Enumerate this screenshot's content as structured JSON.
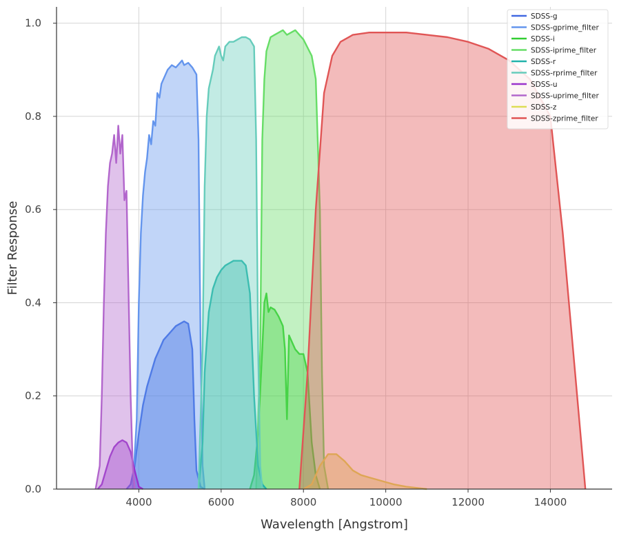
{
  "chart_data": {
    "type": "area",
    "title": "",
    "xlabel": "Wavelength [Angstrom]",
    "ylabel": "Filter Response",
    "xlim": [
      2000,
      15500
    ],
    "ylim": [
      0,
      1.035
    ],
    "xticks": [
      4000,
      6000,
      8000,
      10000,
      12000,
      14000
    ],
    "yticks": [
      0.0,
      0.2,
      0.4,
      0.6,
      0.8,
      1.0
    ],
    "ytick_labels": [
      "0.0",
      "0.2",
      "0.4",
      "0.6",
      "0.8",
      "1.0"
    ],
    "grid": true,
    "legend_position": "top-right",
    "series": [
      {
        "name": "SDSS-g",
        "color": "#4169e1",
        "fill_opacity": 0.45,
        "points": [
          [
            3700,
            0
          ],
          [
            3800,
            0.01
          ],
          [
            3900,
            0.05
          ],
          [
            4000,
            0.12
          ],
          [
            4100,
            0.18
          ],
          [
            4200,
            0.22
          ],
          [
            4300,
            0.25
          ],
          [
            4400,
            0.28
          ],
          [
            4500,
            0.3
          ],
          [
            4600,
            0.32
          ],
          [
            4700,
            0.33
          ],
          [
            4800,
            0.34
          ],
          [
            4900,
            0.35
          ],
          [
            5000,
            0.355
          ],
          [
            5100,
            0.36
          ],
          [
            5200,
            0.355
          ],
          [
            5300,
            0.3
          ],
          [
            5350,
            0.15
          ],
          [
            5400,
            0.04
          ],
          [
            5500,
            0.005
          ],
          [
            5600,
            0
          ]
        ]
      },
      {
        "name": "SDSS-gprime_filter",
        "color": "#6495ed",
        "fill_opacity": 0.4,
        "points": [
          [
            3850,
            0
          ],
          [
            3950,
            0.15
          ],
          [
            4000,
            0.4
          ],
          [
            4050,
            0.55
          ],
          [
            4100,
            0.63
          ],
          [
            4150,
            0.68
          ],
          [
            4200,
            0.71
          ],
          [
            4250,
            0.76
          ],
          [
            4300,
            0.74
          ],
          [
            4350,
            0.79
          ],
          [
            4400,
            0.78
          ],
          [
            4450,
            0.85
          ],
          [
            4500,
            0.84
          ],
          [
            4550,
            0.87
          ],
          [
            4600,
            0.88
          ],
          [
            4700,
            0.9
          ],
          [
            4800,
            0.91
          ],
          [
            4900,
            0.905
          ],
          [
            5000,
            0.915
          ],
          [
            5050,
            0.92
          ],
          [
            5100,
            0.91
          ],
          [
            5200,
            0.915
          ],
          [
            5300,
            0.905
          ],
          [
            5400,
            0.89
          ],
          [
            5450,
            0.75
          ],
          [
            5500,
            0.3
          ],
          [
            5550,
            0.05
          ],
          [
            5600,
            0
          ]
        ]
      },
      {
        "name": "SDSS-i",
        "color": "#32cd32",
        "fill_opacity": 0.4,
        "points": [
          [
            6700,
            0
          ],
          [
            6800,
            0.03
          ],
          [
            6900,
            0.12
          ],
          [
            7000,
            0.3
          ],
          [
            7050,
            0.4
          ],
          [
            7100,
            0.42
          ],
          [
            7150,
            0.38
          ],
          [
            7200,
            0.39
          ],
          [
            7300,
            0.385
          ],
          [
            7400,
            0.37
          ],
          [
            7500,
            0.35
          ],
          [
            7550,
            0.3
          ],
          [
            7600,
            0.15
          ],
          [
            7650,
            0.33
          ],
          [
            7700,
            0.32
          ],
          [
            7800,
            0.3
          ],
          [
            7900,
            0.29
          ],
          [
            8000,
            0.29
          ],
          [
            8100,
            0.25
          ],
          [
            8200,
            0.1
          ],
          [
            8300,
            0.03
          ],
          [
            8400,
            0
          ]
        ]
      },
      {
        "name": "SDSS-iprime_filter",
        "color": "#66dd66",
        "fill_opacity": 0.4,
        "points": [
          [
            6850,
            0
          ],
          [
            6950,
            0.3
          ],
          [
            7000,
            0.75
          ],
          [
            7050,
            0.88
          ],
          [
            7100,
            0.94
          ],
          [
            7200,
            0.97
          ],
          [
            7300,
            0.975
          ],
          [
            7400,
            0.98
          ],
          [
            7500,
            0.985
          ],
          [
            7600,
            0.975
          ],
          [
            7700,
            0.98
          ],
          [
            7800,
            0.985
          ],
          [
            7900,
            0.975
          ],
          [
            8000,
            0.965
          ],
          [
            8200,
            0.93
          ],
          [
            8300,
            0.88
          ],
          [
            8400,
            0.6
          ],
          [
            8450,
            0.25
          ],
          [
            8500,
            0.05
          ],
          [
            8600,
            0
          ]
        ]
      },
      {
        "name": "SDSS-r",
        "color": "#20b2aa",
        "fill_opacity": 0.4,
        "points": [
          [
            5450,
            0
          ],
          [
            5550,
            0.1
          ],
          [
            5600,
            0.25
          ],
          [
            5700,
            0.38
          ],
          [
            5800,
            0.43
          ],
          [
            5900,
            0.455
          ],
          [
            6000,
            0.47
          ],
          [
            6100,
            0.48
          ],
          [
            6200,
            0.485
          ],
          [
            6300,
            0.49
          ],
          [
            6400,
            0.49
          ],
          [
            6500,
            0.49
          ],
          [
            6600,
            0.48
          ],
          [
            6700,
            0.42
          ],
          [
            6800,
            0.2
          ],
          [
            6900,
            0.05
          ],
          [
            7000,
            0.01
          ],
          [
            7100,
            0
          ]
        ]
      },
      {
        "name": "SDSS-rprime_filter",
        "color": "#66ccbb",
        "fill_opacity": 0.4,
        "points": [
          [
            5450,
            0
          ],
          [
            5550,
            0.3
          ],
          [
            5600,
            0.65
          ],
          [
            5650,
            0.8
          ],
          [
            5700,
            0.86
          ],
          [
            5800,
            0.9
          ],
          [
            5850,
            0.93
          ],
          [
            5900,
            0.94
          ],
          [
            5950,
            0.95
          ],
          [
            6000,
            0.93
          ],
          [
            6050,
            0.92
          ],
          [
            6100,
            0.95
          ],
          [
            6200,
            0.96
          ],
          [
            6300,
            0.96
          ],
          [
            6400,
            0.965
          ],
          [
            6500,
            0.97
          ],
          [
            6600,
            0.97
          ],
          [
            6700,
            0.965
          ],
          [
            6800,
            0.95
          ],
          [
            6850,
            0.75
          ],
          [
            6900,
            0.3
          ],
          [
            6950,
            0.05
          ],
          [
            7000,
            0
          ]
        ]
      },
      {
        "name": "SDSS-u",
        "color": "#9932cc",
        "fill_opacity": 0.4,
        "points": [
          [
            3000,
            0
          ],
          [
            3100,
            0.01
          ],
          [
            3200,
            0.04
          ],
          [
            3300,
            0.07
          ],
          [
            3400,
            0.09
          ],
          [
            3500,
            0.1
          ],
          [
            3600,
            0.105
          ],
          [
            3700,
            0.1
          ],
          [
            3800,
            0.08
          ],
          [
            3900,
            0.04
          ],
          [
            4000,
            0.005
          ],
          [
            4100,
            0
          ]
        ]
      },
      {
        "name": "SDSS-uprime_filter",
        "color": "#b266cc",
        "fill_opacity": 0.4,
        "points": [
          [
            2950,
            0
          ],
          [
            3050,
            0.05
          ],
          [
            3100,
            0.2
          ],
          [
            3150,
            0.4
          ],
          [
            3200,
            0.55
          ],
          [
            3250,
            0.65
          ],
          [
            3300,
            0.7
          ],
          [
            3350,
            0.72
          ],
          [
            3400,
            0.76
          ],
          [
            3450,
            0.7
          ],
          [
            3500,
            0.78
          ],
          [
            3550,
            0.72
          ],
          [
            3600,
            0.76
          ],
          [
            3650,
            0.62
          ],
          [
            3700,
            0.64
          ],
          [
            3750,
            0.42
          ],
          [
            3800,
            0.2
          ],
          [
            3850,
            0.05
          ],
          [
            3900,
            0
          ]
        ]
      },
      {
        "name": "SDSS-z",
        "color": "#dddd55",
        "fill_opacity": 0.4,
        "points": [
          [
            8000,
            0
          ],
          [
            8200,
            0.01
          ],
          [
            8400,
            0.05
          ],
          [
            8600,
            0.075
          ],
          [
            8800,
            0.075
          ],
          [
            9000,
            0.06
          ],
          [
            9200,
            0.04
          ],
          [
            9400,
            0.03
          ],
          [
            9600,
            0.025
          ],
          [
            9800,
            0.02
          ],
          [
            10000,
            0.015
          ],
          [
            10200,
            0.01
          ],
          [
            10500,
            0.005
          ],
          [
            11000,
            0
          ]
        ]
      },
      {
        "name": "SDSS-zprime_filter",
        "color": "#e05555",
        "fill_opacity": 0.4,
        "points": [
          [
            7900,
            0
          ],
          [
            8100,
            0.25
          ],
          [
            8300,
            0.6
          ],
          [
            8500,
            0.85
          ],
          [
            8700,
            0.93
          ],
          [
            8900,
            0.96
          ],
          [
            9200,
            0.975
          ],
          [
            9600,
            0.98
          ],
          [
            10000,
            0.98
          ],
          [
            10500,
            0.98
          ],
          [
            11000,
            0.975
          ],
          [
            11500,
            0.97
          ],
          [
            12000,
            0.96
          ],
          [
            12500,
            0.945
          ],
          [
            13000,
            0.92
          ],
          [
            13500,
            0.88
          ],
          [
            14000,
            0.8
          ],
          [
            14300,
            0.55
          ],
          [
            14600,
            0.25
          ],
          [
            14850,
            0
          ]
        ]
      }
    ]
  }
}
